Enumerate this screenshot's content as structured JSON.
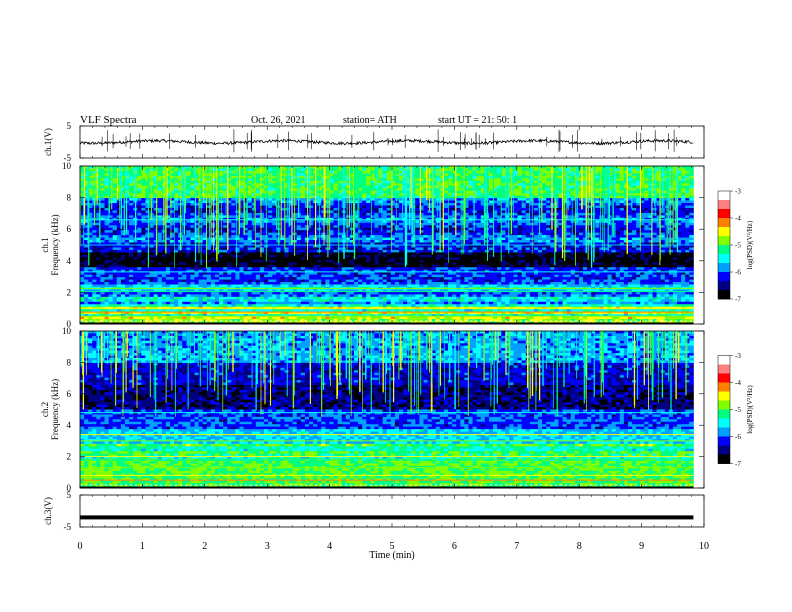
{
  "header": {
    "title": "VLF  Spectra",
    "date": "Oct. 26, 2021",
    "station": "station= ATH",
    "start_ut": "start  UT  =    21: 50: 1"
  },
  "chart_data": [
    {
      "type": "line",
      "panel": "ch1",
      "ylabel": "ch.1(V)",
      "ylim": [
        -5,
        5
      ],
      "yticks": [
        "5",
        "-5"
      ],
      "xlim": [
        0,
        10
      ],
      "description_values": {
        "baseline_v": 0,
        "data_end_min": 9.83
      }
    },
    {
      "type": "heatmap",
      "panel": "ch1-spectrogram",
      "ylabel": "ch.1\nFrequency  (kHz)",
      "ylim": [
        0,
        10
      ],
      "yticks": [
        "0",
        "2",
        "4",
        "6",
        "8",
        "10"
      ],
      "xlim": [
        0,
        10
      ],
      "data_end_min": 9.83,
      "colorbar": {
        "label": "log(PSD)(V²/Hz)",
        "range": [
          -7,
          -3
        ],
        "ticks": [
          "-3",
          "-4",
          "-5",
          "-6",
          "-7"
        ]
      }
    },
    {
      "type": "heatmap",
      "panel": "ch2-spectrogram",
      "ylabel": "ch.2\nFrequency  (kHz)",
      "ylim": [
        0,
        10
      ],
      "yticks": [
        "0",
        "2",
        "4",
        "6",
        "8",
        "10"
      ],
      "xlim": [
        0,
        10
      ],
      "data_end_min": 9.83,
      "colorbar": {
        "label": "log(PSD)(V²/Hz)",
        "range": [
          -7,
          -3
        ],
        "ticks": [
          "-3",
          "-4",
          "-5",
          "-6",
          "-7"
        ]
      }
    },
    {
      "type": "line",
      "panel": "ch3",
      "ylabel": "ch.3(V)",
      "ylim": [
        -5,
        5
      ],
      "yticks": [
        "5",
        "-5"
      ],
      "xlim": [
        0,
        10
      ],
      "description_values": {
        "level_v": -2,
        "data_end_min": 9.83
      }
    }
  ],
  "xaxis": {
    "label": "Time  (min)",
    "ticks": [
      "0",
      "1",
      "2",
      "3",
      "4",
      "5",
      "6",
      "7",
      "8",
      "9",
      "10"
    ]
  },
  "colors": {
    "colormap": [
      "#000000",
      "#000080",
      "#0000ff",
      "#00a0ff",
      "#00ffff",
      "#00ff80",
      "#80ff00",
      "#ffff00",
      "#ff8000",
      "#ff0000",
      "#ff8080",
      "#ffffff"
    ]
  }
}
